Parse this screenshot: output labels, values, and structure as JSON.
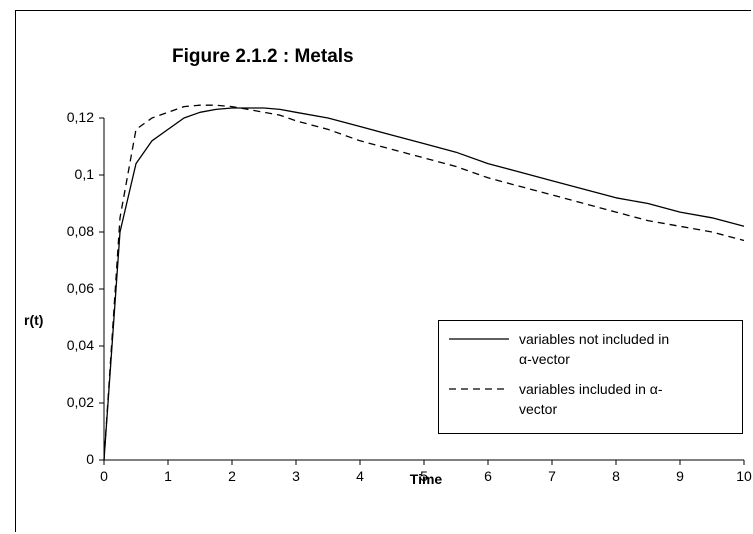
{
  "chart_data": {
    "type": "line",
    "title": "Figure 2.1.2 : Metals",
    "xlabel": "Time",
    "ylabel": "r(t)",
    "xlim": [
      0,
      10
    ],
    "ylim": [
      0,
      0.12
    ],
    "xticks": [
      "0",
      "1",
      "2",
      "3",
      "4",
      "5",
      "6",
      "7",
      "8",
      "9",
      "10"
    ],
    "yticks": [
      "0",
      "0,02",
      "0,04",
      "0,06",
      "0,08",
      "0,1",
      "0,12"
    ],
    "ytick_values": [
      0,
      0.02,
      0.04,
      0.06,
      0.08,
      0.1,
      0.12
    ],
    "grid": false,
    "legend_position": "lower-right",
    "series": [
      {
        "name": "variables not included in α-vector",
        "style": "solid",
        "x": [
          0,
          0.25,
          0.5,
          0.75,
          1,
          1.25,
          1.5,
          1.75,
          2,
          2.25,
          2.5,
          2.75,
          3,
          3.5,
          4,
          4.5,
          5,
          5.5,
          6,
          6.5,
          7,
          7.5,
          8,
          8.5,
          9,
          9.5,
          10
        ],
        "y": [
          0,
          0.08,
          0.104,
          0.112,
          0.116,
          0.12,
          0.122,
          0.123,
          0.1235,
          0.1235,
          0.1235,
          0.123,
          0.122,
          0.12,
          0.117,
          0.114,
          0.111,
          0.108,
          0.104,
          0.101,
          0.098,
          0.095,
          0.092,
          0.09,
          0.087,
          0.085,
          0.082
        ]
      },
      {
        "name": "variables included in α-vector",
        "style": "dashed",
        "x": [
          0,
          0.25,
          0.5,
          0.75,
          1,
          1.25,
          1.5,
          1.75,
          2,
          2.25,
          2.5,
          2.75,
          3,
          3.5,
          4,
          4.5,
          5,
          5.5,
          6,
          6.5,
          7,
          7.5,
          8,
          8.5,
          9,
          9.5,
          10
        ],
        "y": [
          0,
          0.085,
          0.116,
          0.12,
          0.122,
          0.124,
          0.1245,
          0.1245,
          0.124,
          0.123,
          0.122,
          0.121,
          0.119,
          0.116,
          0.112,
          0.109,
          0.106,
          0.103,
          0.099,
          0.096,
          0.093,
          0.09,
          0.087,
          0.084,
          0.082,
          0.08,
          0.077
        ]
      }
    ],
    "legend": {
      "entries": [
        {
          "line1": "variables not included in",
          "line2": "α-vector"
        },
        {
          "line1": "variables included in α-",
          "line2": "vector"
        }
      ]
    },
    "colors": {
      "line": "#000000",
      "axis": "#000000",
      "background": "#ffffff"
    }
  }
}
